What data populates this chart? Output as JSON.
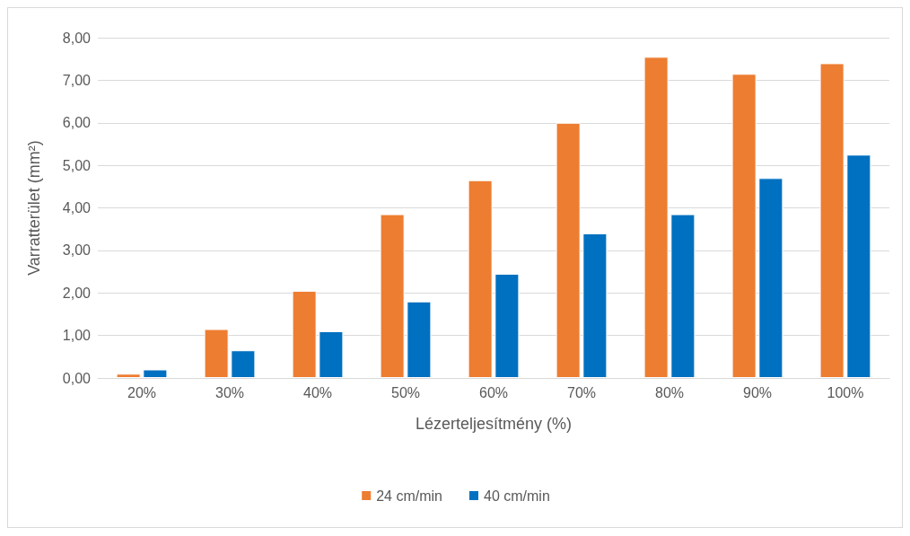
{
  "chart_data": {
    "type": "bar",
    "xlabel": "Lézerteljesítmény (%)",
    "ylabel": "Varratterület (mm²)",
    "categories": [
      "20%",
      "30%",
      "40%",
      "50%",
      "60%",
      "70%",
      "80%",
      "90%",
      "100%"
    ],
    "series": [
      {
        "name": "24 cm/min",
        "color": "#ed7d31",
        "values": [
          0.1,
          1.15,
          2.05,
          3.85,
          4.65,
          6.0,
          7.55,
          7.15,
          7.4
        ]
      },
      {
        "name": "40 cm/min",
        "color": "#0070c0",
        "values": [
          0.2,
          0.65,
          1.1,
          1.8,
          2.45,
          3.4,
          3.85,
          4.7,
          5.25
        ]
      }
    ],
    "ylim": [
      0,
      8
    ],
    "yticks": [
      {
        "value": 0,
        "label": "0,00"
      },
      {
        "value": 1,
        "label": "1,00"
      },
      {
        "value": 2,
        "label": "2,00"
      },
      {
        "value": 3,
        "label": "3,00"
      },
      {
        "value": 4,
        "label": "4,00"
      },
      {
        "value": 5,
        "label": "5,00"
      },
      {
        "value": 6,
        "label": "6,00"
      },
      {
        "value": 7,
        "label": "7,00"
      },
      {
        "value": 8,
        "label": "8,00"
      }
    ],
    "grid": "y",
    "legend": "bottom"
  }
}
